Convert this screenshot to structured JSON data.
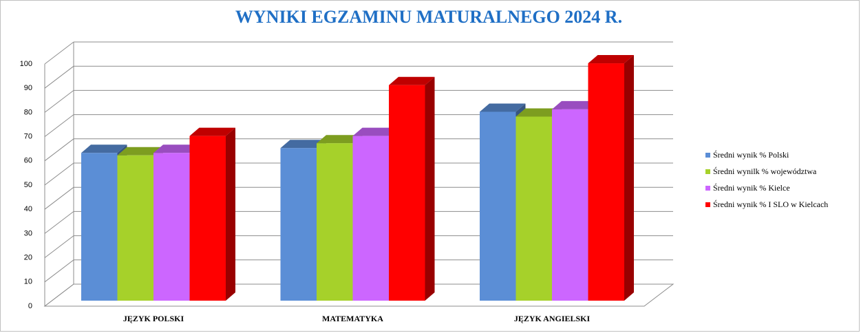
{
  "chart_data": {
    "type": "bar3d",
    "title": "WYNIKI EGZAMINU  MATURALNEGO 2024 R.",
    "categories": [
      "JĘZYK POLSKI",
      "MATEMATYKA",
      "JĘZYK ANGIELSKI"
    ],
    "series": [
      {
        "name": "Średni wynik % Polski",
        "color": "#5b8ed6",
        "values": [
          61,
          63,
          78
        ]
      },
      {
        "name": "Średni wynilk % województwa",
        "color": "#a6d12a",
        "values": [
          60,
          65,
          76
        ]
      },
      {
        "name": "Średni wynik % Kielce",
        "color": "#cc66ff",
        "values": [
          61,
          68,
          79
        ]
      },
      {
        "name": "Średni wynik % I SLO w Kielcach",
        "color": "#ff0000",
        "values": [
          68,
          89,
          98
        ]
      }
    ],
    "ylim": [
      0,
      100
    ],
    "yticks": [
      0,
      10,
      20,
      30,
      40,
      50,
      60,
      70,
      80,
      90,
      100
    ],
    "grid": true,
    "legend": "right"
  }
}
